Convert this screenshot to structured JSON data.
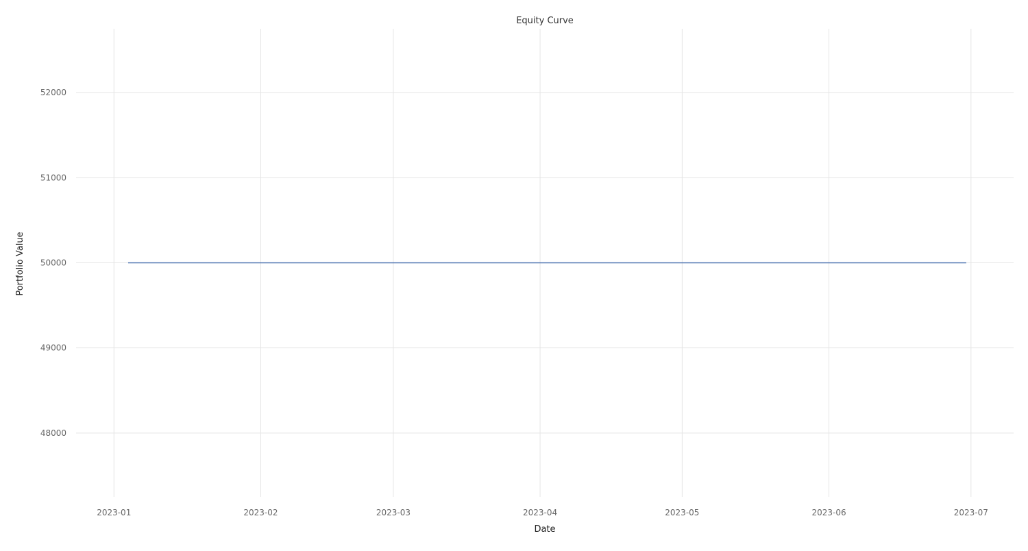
{
  "chart_data": {
    "type": "line",
    "title": "Equity Curve",
    "xlabel": "Date",
    "ylabel": "Portfolio Value",
    "grid": true,
    "legend": "none",
    "x_axis_type": "date",
    "xlim": [
      "2022-12-24",
      "2023-07-10"
    ],
    "ylim": [
      47250,
      52750
    ],
    "x_ticks": [
      "2023-01",
      "2023-02",
      "2023-03",
      "2023-04",
      "2023-05",
      "2023-06",
      "2023-07"
    ],
    "y_ticks": [
      48000,
      49000,
      50000,
      51000,
      52000
    ],
    "series": [
      {
        "color": "#4c72b0",
        "x": [
          "2023-01-04",
          "2023-06-30"
        ],
        "y": [
          50000,
          50000
        ]
      }
    ]
  }
}
